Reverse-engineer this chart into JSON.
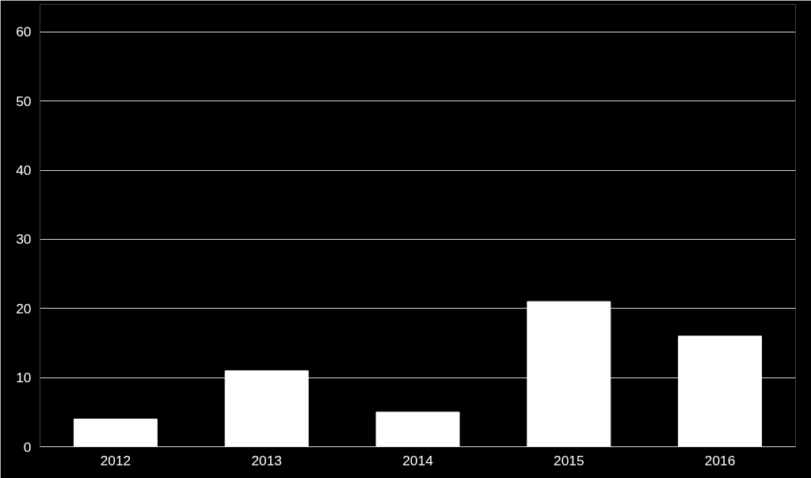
{
  "chart_data": {
    "type": "bar",
    "categories": [
      "2012",
      "2013",
      "2014",
      "2015",
      "2016"
    ],
    "values": [
      4,
      11,
      5,
      21,
      16
    ],
    "color": "#ffffff",
    "ylim": [
      0,
      64
    ],
    "yticks": [
      0,
      10,
      20,
      30,
      40,
      50,
      60
    ],
    "grid": "y"
  }
}
